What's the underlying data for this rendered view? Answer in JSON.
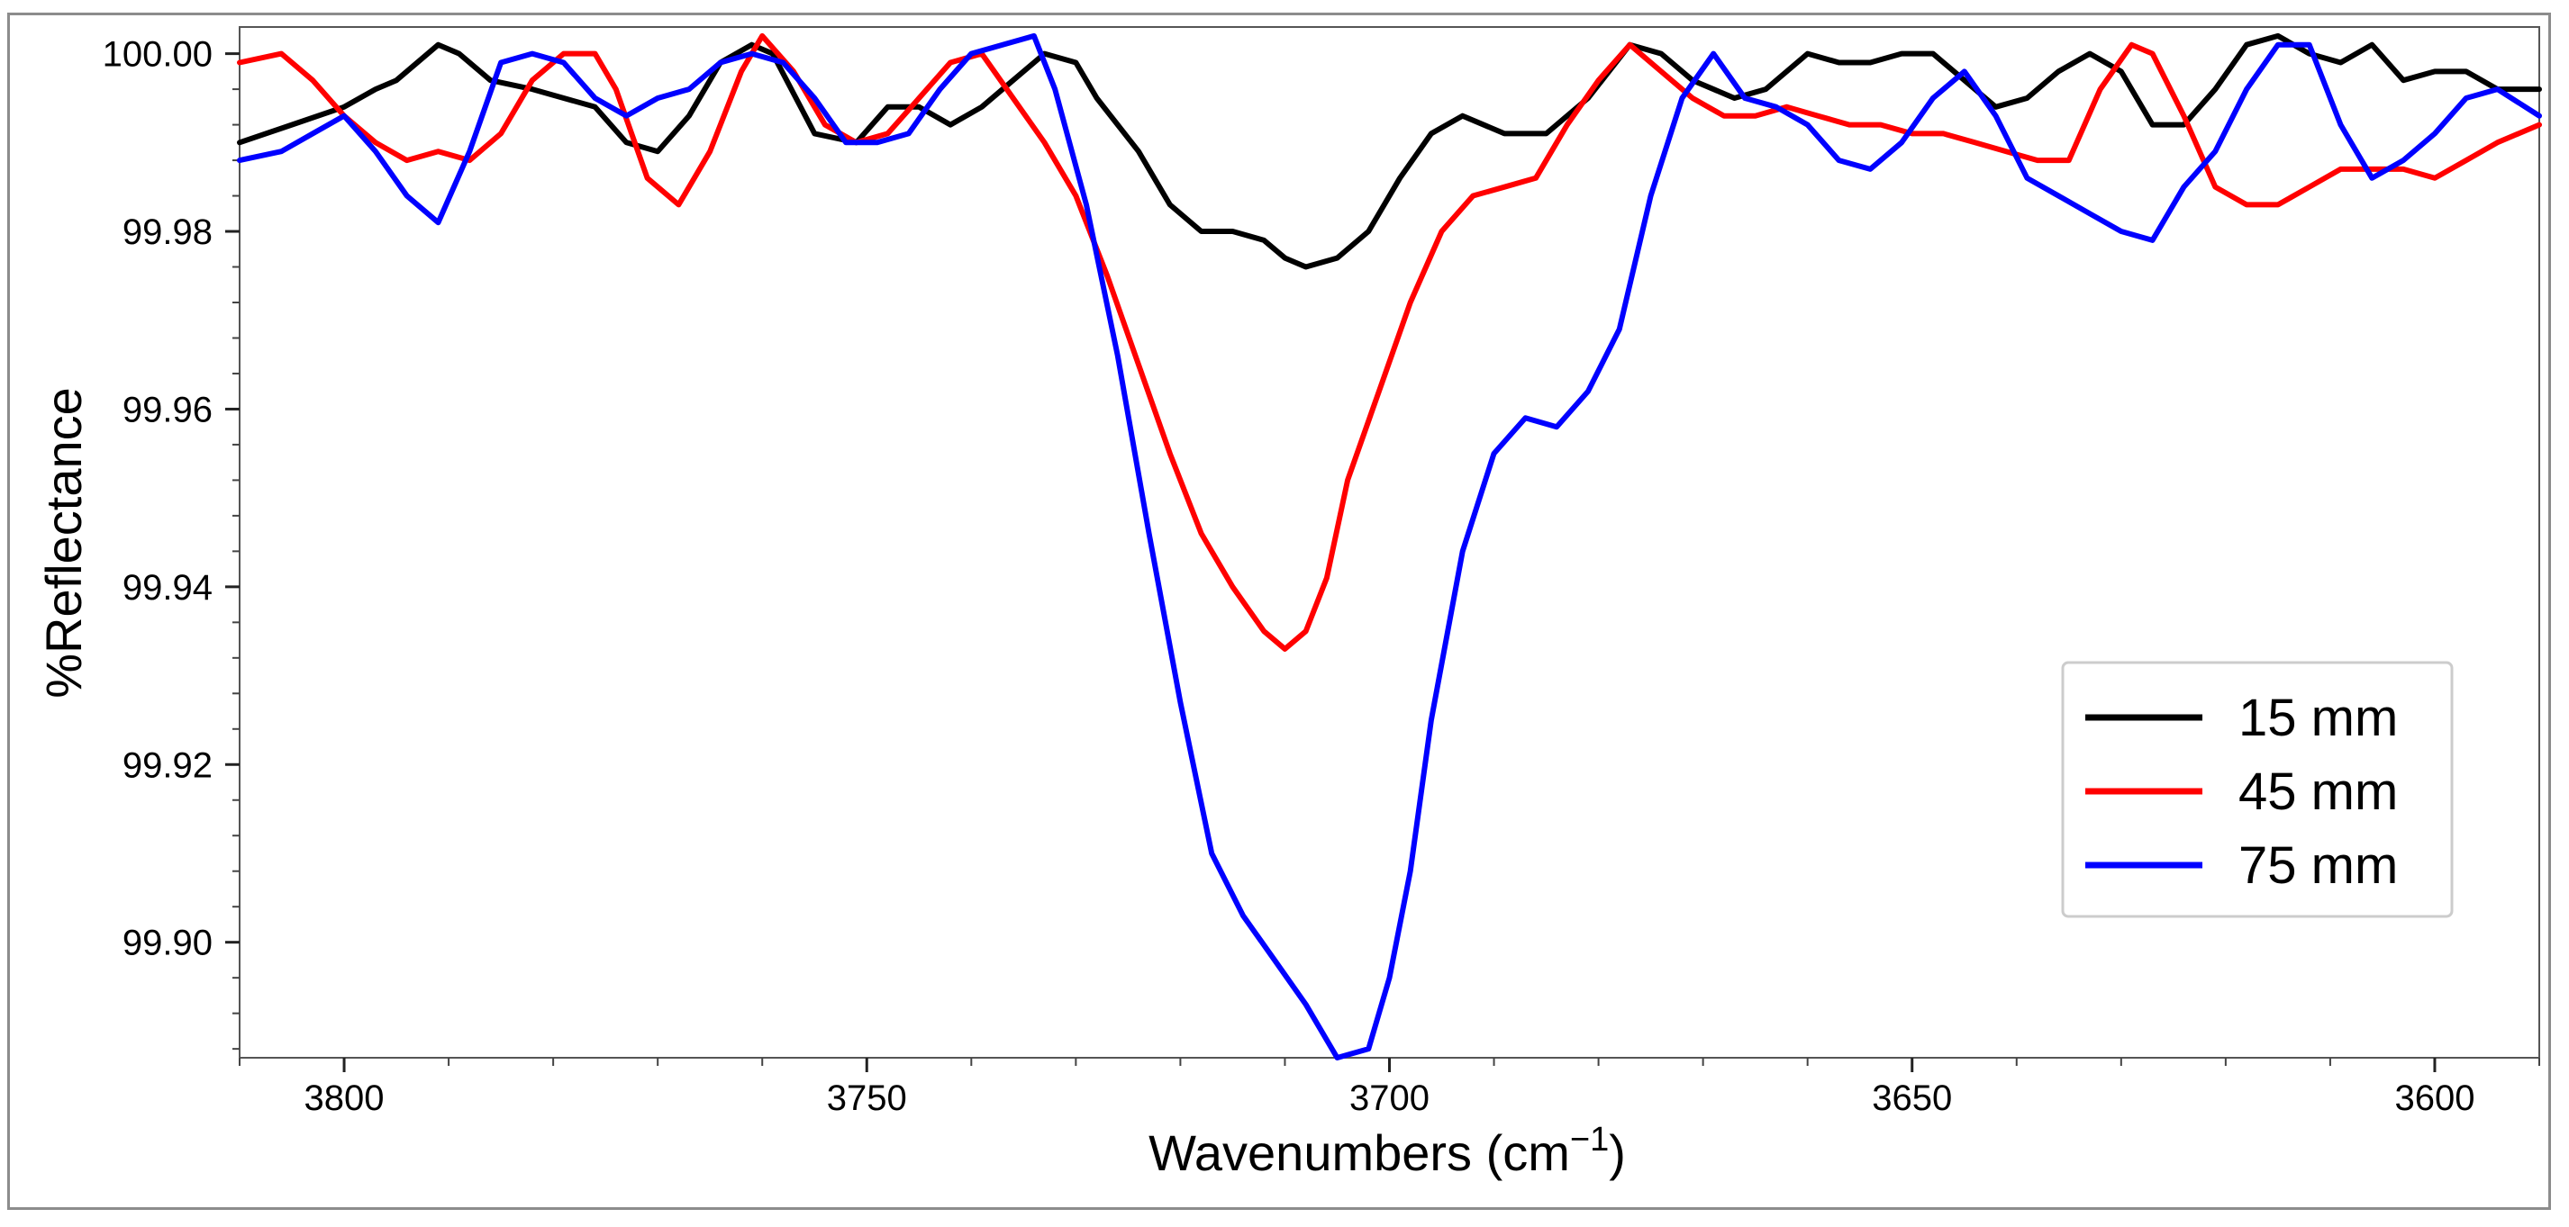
{
  "chart_data": {
    "type": "line",
    "title": "",
    "xlabel": "Wavenumbers (cm",
    "xlabel_sup": "−1",
    "xlabel_close": ")",
    "ylabel": "%Reflectance",
    "xlim": [
      3810,
      3590
    ],
    "ylim": [
      99.887,
      100.003
    ],
    "x_reversed": true,
    "x_ticks": [
      3800,
      3750,
      3700,
      3650,
      3600
    ],
    "x_tick_labels": [
      "3800",
      "3750",
      "3700",
      "3650",
      "3600"
    ],
    "y_ticks": [
      99.9,
      99.92,
      99.94,
      99.96,
      99.98,
      100.0
    ],
    "y_tick_labels": [
      "99.90",
      "99.92",
      "99.94",
      "99.96",
      "99.98",
      "100.00"
    ],
    "grid": false,
    "legend_position": "lower-right",
    "series": [
      {
        "name": "15 mm",
        "color": "#000000",
        "x": [
          3810,
          3805,
          3800,
          3797,
          3795,
          3791,
          3789,
          3786,
          3782,
          3776,
          3773,
          3770,
          3767,
          3764,
          3761,
          3759,
          3755,
          3751,
          3748,
          3745,
          3742,
          3739,
          3736,
          3733,
          3730,
          3728,
          3724,
          3721,
          3718,
          3715,
          3712,
          3710,
          3708,
          3705,
          3702,
          3699,
          3696,
          3693,
          3689,
          3685,
          3681,
          3677,
          3674,
          3671,
          3667,
          3664,
          3660,
          3657,
          3654,
          3651,
          3648,
          3645,
          3642,
          3639,
          3636,
          3633,
          3630,
          3627,
          3624,
          3621,
          3618,
          3615,
          3612,
          3609,
          3606,
          3603,
          3600,
          3597,
          3594,
          3590
        ],
        "y": [
          99.99,
          99.992,
          99.994,
          99.996,
          99.997,
          100.001,
          100.0,
          99.997,
          99.996,
          99.994,
          99.99,
          99.989,
          99.993,
          99.999,
          100.001,
          100.0,
          99.991,
          99.99,
          99.994,
          99.994,
          99.992,
          99.994,
          99.997,
          100.0,
          99.999,
          99.995,
          99.989,
          99.983,
          99.98,
          99.98,
          99.979,
          99.977,
          99.976,
          99.977,
          99.98,
          99.986,
          99.991,
          99.993,
          99.991,
          99.991,
          99.995,
          100.001,
          100.0,
          99.997,
          99.995,
          99.996,
          100.0,
          99.999,
          99.999,
          100.0,
          100.0,
          99.997,
          99.994,
          99.995,
          99.998,
          100.0,
          99.998,
          99.992,
          99.992,
          99.996,
          100.001,
          100.002,
          100.0,
          99.999,
          100.001,
          99.997,
          99.998,
          99.998,
          99.996,
          99.996
        ]
      },
      {
        "name": "45 mm",
        "color": "#ff0000",
        "x": [
          3810,
          3806,
          3803,
          3800,
          3797,
          3794,
          3791,
          3788,
          3785,
          3782,
          3779,
          3776,
          3774,
          3771,
          3768,
          3765,
          3762,
          3760,
          3757,
          3754,
          3751,
          3748,
          3745,
          3742,
          3739,
          3736,
          3733,
          3730,
          3727,
          3724,
          3721,
          3718,
          3715,
          3712,
          3710,
          3708,
          3706,
          3704,
          3701,
          3698,
          3695,
          3692,
          3689,
          3686,
          3683,
          3680,
          3677,
          3674,
          3671,
          3668,
          3665,
          3662,
          3659,
          3656,
          3653,
          3650,
          3647,
          3644,
          3641,
          3638,
          3635,
          3632,
          3629,
          3627,
          3624,
          3621,
          3618,
          3615,
          3612,
          3609,
          3606,
          3603,
          3600,
          3597,
          3594,
          3590
        ],
        "y": [
          99.999,
          100.0,
          99.997,
          99.993,
          99.99,
          99.988,
          99.989,
          99.988,
          99.991,
          99.997,
          100.0,
          100.0,
          99.996,
          99.986,
          99.983,
          99.989,
          99.998,
          100.002,
          99.998,
          99.992,
          99.99,
          99.991,
          99.995,
          99.999,
          100.0,
          99.995,
          99.99,
          99.984,
          99.975,
          99.965,
          99.955,
          99.946,
          99.94,
          99.935,
          99.933,
          99.935,
          99.941,
          99.952,
          99.962,
          99.972,
          99.98,
          99.984,
          99.985,
          99.986,
          99.992,
          99.997,
          100.001,
          99.998,
          99.995,
          99.993,
          99.993,
          99.994,
          99.993,
          99.992,
          99.992,
          99.991,
          99.991,
          99.99,
          99.989,
          99.988,
          99.988,
          99.996,
          100.001,
          100.0,
          99.993,
          99.985,
          99.983,
          99.983,
          99.985,
          99.987,
          99.987,
          99.987,
          99.986,
          99.988,
          99.99,
          99.992
        ]
      },
      {
        "name": "75 mm",
        "color": "#0000ff",
        "x": [
          3810,
          3806,
          3803,
          3800,
          3797,
          3794,
          3791,
          3788,
          3785,
          3782,
          3779,
          3776,
          3773,
          3770,
          3767,
          3764,
          3761,
          3758,
          3755,
          3752,
          3749,
          3746,
          3743,
          3740,
          3737,
          3734,
          3732,
          3729,
          3726,
          3723,
          3720,
          3717,
          3714,
          3711,
          3708,
          3705,
          3702,
          3700,
          3698,
          3696,
          3693,
          3690,
          3687,
          3684,
          3681,
          3678,
          3675,
          3672,
          3669,
          3666,
          3663,
          3660,
          3657,
          3654,
          3651,
          3648,
          3645,
          3642,
          3639,
          3636,
          3633,
          3630,
          3627,
          3624,
          3621,
          3618,
          3615,
          3612,
          3609,
          3606,
          3603,
          3600,
          3597,
          3594,
          3590
        ],
        "y": [
          99.988,
          99.989,
          99.991,
          99.993,
          99.989,
          99.984,
          99.981,
          99.989,
          99.999,
          100.0,
          99.999,
          99.995,
          99.993,
          99.995,
          99.996,
          99.999,
          100.0,
          99.999,
          99.995,
          99.99,
          99.99,
          99.991,
          99.996,
          100.0,
          100.001,
          100.002,
          99.996,
          99.983,
          99.966,
          99.946,
          99.927,
          99.91,
          99.903,
          99.898,
          99.893,
          99.887,
          99.888,
          99.896,
          99.908,
          99.925,
          99.944,
          99.955,
          99.959,
          99.958,
          99.962,
          99.969,
          99.984,
          99.995,
          100.0,
          99.995,
          99.994,
          99.992,
          99.988,
          99.987,
          99.99,
          99.995,
          99.998,
          99.993,
          99.986,
          99.984,
          99.982,
          99.98,
          99.979,
          99.985,
          99.989,
          99.996,
          100.001,
          100.001,
          99.992,
          99.986,
          99.988,
          99.991,
          99.995,
          99.996,
          99.993
        ]
      }
    ]
  }
}
